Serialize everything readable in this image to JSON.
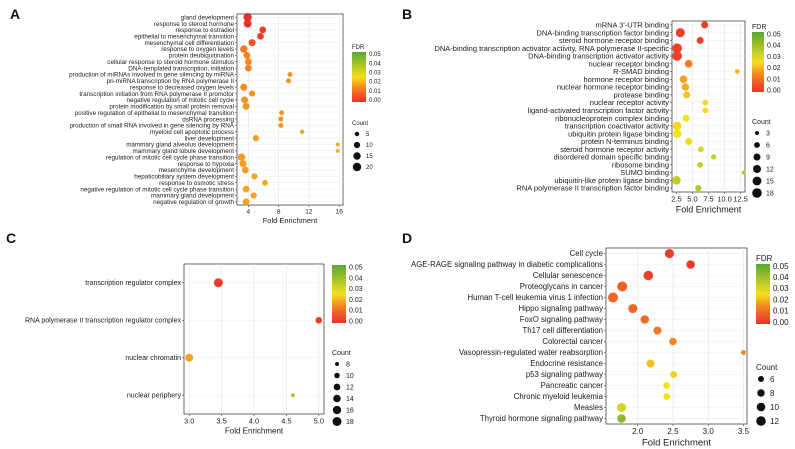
{
  "chart_data": [
    {
      "panel": "A",
      "type": "scatter",
      "xlabel": "Fold Enrichment",
      "ylabel": "",
      "xlim": [
        2.5,
        16.5
      ],
      "xticks": [
        4,
        8,
        12,
        16
      ],
      "grid": true,
      "legend_position": "right",
      "fdr_legend": {
        "title": "FDR",
        "ticks": [
          "0.05",
          "0.04",
          "0.03",
          "0.02",
          "0.01",
          "0.00"
        ],
        "range": [
          0,
          0.05
        ]
      },
      "count_legend": {
        "title": "Count",
        "values": [
          5,
          10,
          15,
          20
        ]
      },
      "points": [
        {
          "term": "gland development",
          "fold": 3.9,
          "fdr": 0.0,
          "count": 20
        },
        {
          "term": "response to steroid hormone",
          "fold": 3.9,
          "fdr": 0.0,
          "count": 18
        },
        {
          "term": "response to estradiol",
          "fold": 5.9,
          "fdr": 0.002,
          "count": 12
        },
        {
          "term": "epithelial to mesenchymal transition",
          "fold": 5.6,
          "fdr": 0.003,
          "count": 12
        },
        {
          "term": "mesenchymal cell differentiation",
          "fold": 4.5,
          "fdr": 0.006,
          "count": 13
        },
        {
          "term": "response to oxygen levels",
          "fold": 3.4,
          "fdr": 0.012,
          "count": 15
        },
        {
          "term": "protein deubiquitination",
          "fold": 3.8,
          "fdr": 0.014,
          "count": 13
        },
        {
          "term": "cellular response to steroid hormone stimulus",
          "fold": 4.0,
          "fdr": 0.014,
          "count": 12
        },
        {
          "term": "DNA-templated transcription, initiation",
          "fold": 4.0,
          "fdr": 0.014,
          "count": 12
        },
        {
          "term": "production of miRNAs involved in gene silencing by miRNA",
          "fold": 9.5,
          "fdr": 0.016,
          "count": 6
        },
        {
          "term": "pri-miRNA transcription by RNA polymerase II",
          "fold": 9.3,
          "fdr": 0.016,
          "count": 6
        },
        {
          "term": "response to decreased oxygen levels",
          "fold": 3.4,
          "fdr": 0.015,
          "count": 13
        },
        {
          "term": "transcription initiation from RNA polymerase II promotor",
          "fold": 4.5,
          "fdr": 0.016,
          "count": 10
        },
        {
          "term": "negative regulation of mitotic cell cycle",
          "fold": 3.5,
          "fdr": 0.016,
          "count": 13
        },
        {
          "term": "protein modification by small protein removal",
          "fold": 3.7,
          "fdr": 0.016,
          "count": 13
        },
        {
          "term": "positive regulation of epithelial to mesenchymal transition",
          "fold": 8.4,
          "fdr": 0.016,
          "count": 6
        },
        {
          "term": "dsRNA processing",
          "fold": 8.3,
          "fdr": 0.016,
          "count": 6
        },
        {
          "term": "production of small RNA involved in gene silencing by RNA",
          "fold": 8.3,
          "fdr": 0.016,
          "count": 6
        },
        {
          "term": "myeloid cell apoptotic process",
          "fold": 11.1,
          "fdr": 0.018,
          "count": 5
        },
        {
          "term": "liver development",
          "fold": 5.0,
          "fdr": 0.017,
          "count": 10
        },
        {
          "term": "mammary gland alveolus development",
          "fold": 15.8,
          "fdr": 0.019,
          "count": 4
        },
        {
          "term": "mammary gland lobule development",
          "fold": 15.8,
          "fdr": 0.019,
          "count": 4
        },
        {
          "term": "regulation of mitotic cell cycle phase transition",
          "fold": 3.1,
          "fdr": 0.017,
          "count": 15
        },
        {
          "term": "response to hypoxia",
          "fold": 3.3,
          "fdr": 0.017,
          "count": 13
        },
        {
          "term": "mesenchyme development",
          "fold": 3.6,
          "fdr": 0.017,
          "count": 12
        },
        {
          "term": "hepaticobiliary system development",
          "fold": 4.8,
          "fdr": 0.018,
          "count": 10
        },
        {
          "term": "response to osmotic stress",
          "fold": 6.2,
          "fdr": 0.018,
          "count": 8
        },
        {
          "term": "negative regulation of mitotic cell cycle phase transition",
          "fold": 3.7,
          "fdr": 0.018,
          "count": 12
        },
        {
          "term": "mammary gland development",
          "fold": 4.7,
          "fdr": 0.018,
          "count": 10
        },
        {
          "term": "negative regulation of growth",
          "fold": 3.7,
          "fdr": 0.018,
          "count": 12
        }
      ]
    },
    {
      "panel": "B",
      "type": "scatter",
      "xlabel": "Fold Enrichment",
      "ylabel": "",
      "xlim": [
        1.8,
        13.2
      ],
      "xticks": [
        2.5,
        5.0,
        7.5,
        10.0,
        12.5
      ],
      "xtick_labels": [
        "2.5",
        "5.0",
        "7.5",
        "10.0",
        "12.5"
      ],
      "grid": true,
      "legend_position": "right",
      "fdr_legend": {
        "title": "FDR",
        "ticks": [
          "0.05",
          "0.04",
          "0.03",
          "0.02",
          "0.01",
          "0.00"
        ],
        "range": [
          0,
          0.05
        ]
      },
      "count_legend": {
        "title": "Count",
        "values": [
          3,
          6,
          9,
          12,
          15,
          18
        ]
      },
      "points": [
        {
          "term": "mRNA 3'-UTR binding",
          "fold": 6.9,
          "fdr": 0.002,
          "count": 9
        },
        {
          "term": "DNA-binding transcription factor binding",
          "fold": 3.1,
          "fdr": 0.003,
          "count": 16
        },
        {
          "term": "steroid hormone receptor binding",
          "fold": 6.2,
          "fdr": 0.003,
          "count": 9
        },
        {
          "term": "DNA-binding transcription activator activity, RNA polymerase II-specific",
          "fold": 2.6,
          "fdr": 0.003,
          "count": 18
        },
        {
          "term": "DNA-binding transcription activator activity",
          "fold": 2.6,
          "fdr": 0.003,
          "count": 18
        },
        {
          "term": "nuclear receptor binding",
          "fold": 4.4,
          "fdr": 0.013,
          "count": 11
        },
        {
          "term": "R-SMAD binding",
          "fold": 12.0,
          "fdr": 0.02,
          "count": 4
        },
        {
          "term": "hormone receptor binding",
          "fold": 3.6,
          "fdr": 0.018,
          "count": 11
        },
        {
          "term": "nuclear hormone receptor binding",
          "fold": 3.9,
          "fdr": 0.019,
          "count": 10
        },
        {
          "term": "protease binding",
          "fold": 4.1,
          "fdr": 0.022,
          "count": 9
        },
        {
          "term": "nuclear receptor activity",
          "fold": 7.0,
          "fdr": 0.024,
          "count": 6
        },
        {
          "term": "ligand-activated transcription factor activity",
          "fold": 7.0,
          "fdr": 0.024,
          "count": 6
        },
        {
          "term": "ribonucleoprotein complex binding",
          "fold": 4.0,
          "fdr": 0.025,
          "count": 9
        },
        {
          "term": "transcription coactivator activity",
          "fold": 2.6,
          "fdr": 0.024,
          "count": 14
        },
        {
          "term": "ubiquitin protein ligase binding",
          "fold": 2.6,
          "fdr": 0.025,
          "count": 14
        },
        {
          "term": "protein N-terminus binding",
          "fold": 4.4,
          "fdr": 0.026,
          "count": 9
        },
        {
          "term": "steroid hormone receptor activity",
          "fold": 6.3,
          "fdr": 0.03,
          "count": 6
        },
        {
          "term": "disordered domain specific binding",
          "fold": 8.3,
          "fdr": 0.032,
          "count": 5
        },
        {
          "term": "ribosome binding",
          "fold": 6.2,
          "fdr": 0.032,
          "count": 6
        },
        {
          "term": "SUMO binding",
          "fold": 13.0,
          "fdr": 0.035,
          "count": 3
        },
        {
          "term": "ubiquitin-like protein ligase binding",
          "fold": 2.5,
          "fdr": 0.033,
          "count": 14
        },
        {
          "term": "RNA polymerase II transcription factor binding",
          "fold": 5.9,
          "fdr": 0.035,
          "count": 7
        }
      ]
    },
    {
      "panel": "C",
      "type": "scatter",
      "xlabel": "Fold Enrichment",
      "ylabel": "",
      "xlim": [
        2.92,
        5.08
      ],
      "xticks": [
        3.0,
        3.5,
        4.0,
        4.5,
        5.0
      ],
      "xtick_labels": [
        "3.0",
        "3.5",
        "4.0",
        "4.5",
        "5.0"
      ],
      "grid": true,
      "legend_position": "right",
      "fdr_legend": {
        "title": "",
        "ticks": [
          "0.05",
          "0.04",
          "0.03",
          "0.02",
          "0.01",
          "0.00"
        ],
        "range": [
          0,
          0.05
        ]
      },
      "count_legend": {
        "title": "Count",
        "values": [
          8,
          10,
          12,
          14,
          16,
          18
        ]
      },
      "points": [
        {
          "term": "transcription regulator complex",
          "fold": 3.45,
          "fdr": 0.002,
          "count": 18
        },
        {
          "term": "RNA polymerase II transcription regulator complex",
          "fold": 5.0,
          "fdr": 0.003,
          "count": 12
        },
        {
          "term": "nuclear chromatin",
          "fold": 3.0,
          "fdr": 0.018,
          "count": 15
        },
        {
          "term": "nuclear periphery",
          "fold": 4.6,
          "fdr": 0.036,
          "count": 8
        }
      ]
    },
    {
      "panel": "D",
      "type": "scatter",
      "xlabel": "Fold Enrichment",
      "ylabel": "",
      "xlim": [
        1.55,
        3.55
      ],
      "xticks": [
        2.0,
        2.5,
        3.0,
        3.5
      ],
      "xtick_labels": [
        "2.0",
        "2.5",
        "3.0",
        "3.5"
      ],
      "grid": true,
      "legend_position": "right",
      "fdr_legend": {
        "title": "FDR",
        "ticks": [
          "0.05",
          "0.04",
          "0.03",
          "0.02",
          "0.01",
          "0.00"
        ],
        "range": [
          0,
          0.05
        ]
      },
      "count_legend": {
        "title": "Count",
        "values": [
          6,
          8,
          10,
          12
        ]
      },
      "points": [
        {
          "term": "Cell cycle",
          "fold": 2.45,
          "fdr": 0.002,
          "count": 11
        },
        {
          "term": "AGE-RAGE signaling pathway in diabetic complications",
          "fold": 2.75,
          "fdr": 0.002,
          "count": 10
        },
        {
          "term": "Cellular senescence",
          "fold": 2.15,
          "fdr": 0.003,
          "count": 12
        },
        {
          "term": "Proteoglycans in cancer",
          "fold": 1.78,
          "fdr": 0.008,
          "count": 13
        },
        {
          "term": "Human T-cell leukemia virus 1 infection",
          "fold": 1.65,
          "fdr": 0.009,
          "count": 13
        },
        {
          "term": "Hippo signaling pathway",
          "fold": 1.93,
          "fdr": 0.009,
          "count": 11
        },
        {
          "term": "FoxO signaling pathway",
          "fold": 2.1,
          "fdr": 0.01,
          "count": 10
        },
        {
          "term": "Th17 cell differentiation",
          "fold": 2.28,
          "fdr": 0.012,
          "count": 9
        },
        {
          "term": "Colorectal cancer",
          "fold": 2.5,
          "fdr": 0.014,
          "count": 8
        },
        {
          "term": "Vasopressin-regulated water reabsorption",
          "fold": 3.5,
          "fdr": 0.015,
          "count": 5
        },
        {
          "term": "Endocrine resistance",
          "fold": 2.18,
          "fdr": 0.021,
          "count": 9
        },
        {
          "term": "p53 signaling pathway",
          "fold": 2.51,
          "fdr": 0.023,
          "count": 7
        },
        {
          "term": "Pancreatic cancer",
          "fold": 2.41,
          "fdr": 0.025,
          "count": 7
        },
        {
          "term": "Chronic myeloid leukemia",
          "fold": 2.41,
          "fdr": 0.025,
          "count": 7
        },
        {
          "term": "Measles",
          "fold": 1.77,
          "fdr": 0.03,
          "count": 11
        },
        {
          "term": "Thyroid hormone signaling pathway",
          "fold": 1.77,
          "fdr": 0.042,
          "count": 10
        }
      ]
    }
  ],
  "panels": {
    "A": "A",
    "B": "B",
    "C": "C",
    "D": "D"
  }
}
